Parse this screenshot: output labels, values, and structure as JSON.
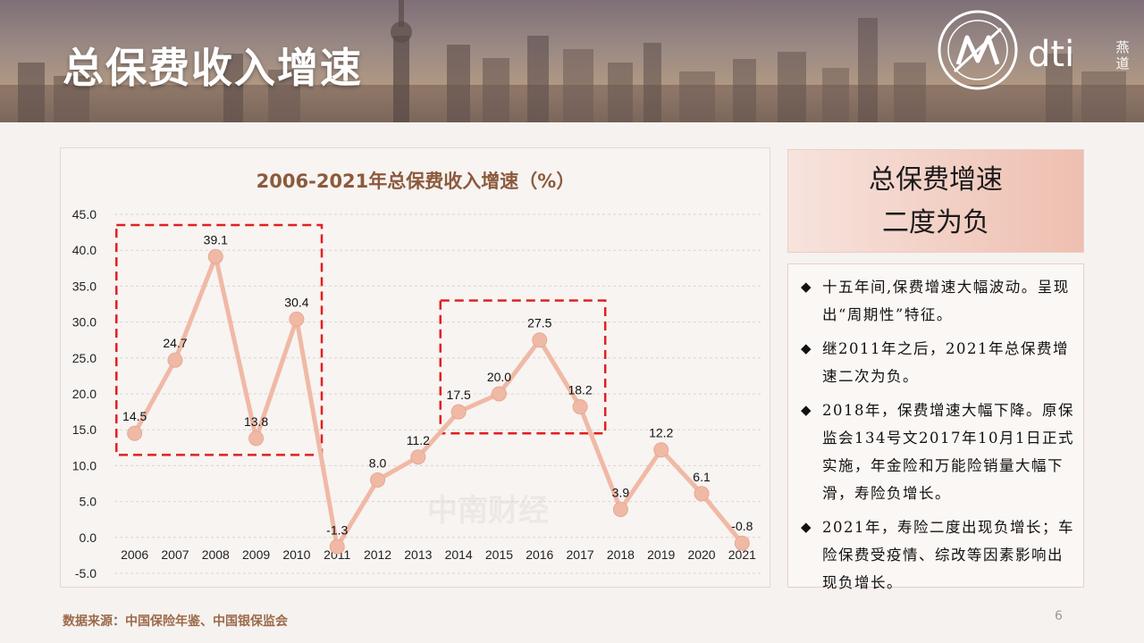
{
  "slide": {
    "title": "总保费收入增速",
    "page_number": "6",
    "source": "数据来源：中国保险年鉴、中国银保监会"
  },
  "logo": {
    "text": "dti",
    "vertical_text": "燕道"
  },
  "summary": {
    "line1": "总保费增速",
    "line2": "二度为负"
  },
  "bullets": [
    {
      "mark": "◆",
      "text": "十五年间,保费增速大幅波动。呈现出“周期性”特征。"
    },
    {
      "mark": "◆",
      "text": "继2011年之后，2021年总保费增速二次为负。"
    },
    {
      "mark": "◆",
      "text": "2018年，保费增速大幅下降。原保监会134号文2017年10月1日正式实施，年金险和万能险销量大幅下滑，寿险负增长。"
    },
    {
      "mark": "◆",
      "text": "2021年，寿险二度出现负增长；车险保费受疫情、综改等因素影响出现负增长。"
    }
  ],
  "watermark": "中南财经",
  "chart_data": {
    "type": "line",
    "title": "2006-2021年总保费收入增速（%）",
    "categories": [
      "2006",
      "2007",
      "2008",
      "2009",
      "2010",
      "2011",
      "2012",
      "2013",
      "2014",
      "2015",
      "2016",
      "2017",
      "2018",
      "2019",
      "2020",
      "2021"
    ],
    "values": [
      14.5,
      24.7,
      39.1,
      13.8,
      30.4,
      -1.3,
      8.0,
      11.2,
      17.5,
      20.0,
      27.5,
      18.2,
      3.9,
      12.2,
      6.1,
      -0.8
    ],
    "data_labels": [
      "14.5",
      "24.7",
      "39.1",
      "13.8",
      "30.4",
      "-1.3",
      "8.0",
      "11.2",
      "17.5",
      "20.0",
      "27.5",
      "18.2",
      "3.9",
      "12.2",
      "6.1",
      "-0.8"
    ],
    "ylim": [
      -5,
      45
    ],
    "yticks": [
      -5,
      0,
      5,
      10,
      15,
      20,
      25,
      30,
      35,
      40,
      45
    ],
    "ytick_labels": [
      "-5.0",
      "0.0",
      "5.0",
      "10.0",
      "15.0",
      "20.0",
      "25.0",
      "30.0",
      "35.0",
      "40.0",
      "45.0"
    ],
    "grid": true,
    "line_color": "#f0b9a6",
    "highlight_boxes": [
      {
        "from": "2006",
        "to": "2010",
        "y_range": [
          11.5,
          43.5
        ],
        "color": "#e02020"
      },
      {
        "from": "2014",
        "to": "2017",
        "y_range": [
          14.5,
          33.0
        ],
        "color": "#e02020"
      }
    ]
  }
}
